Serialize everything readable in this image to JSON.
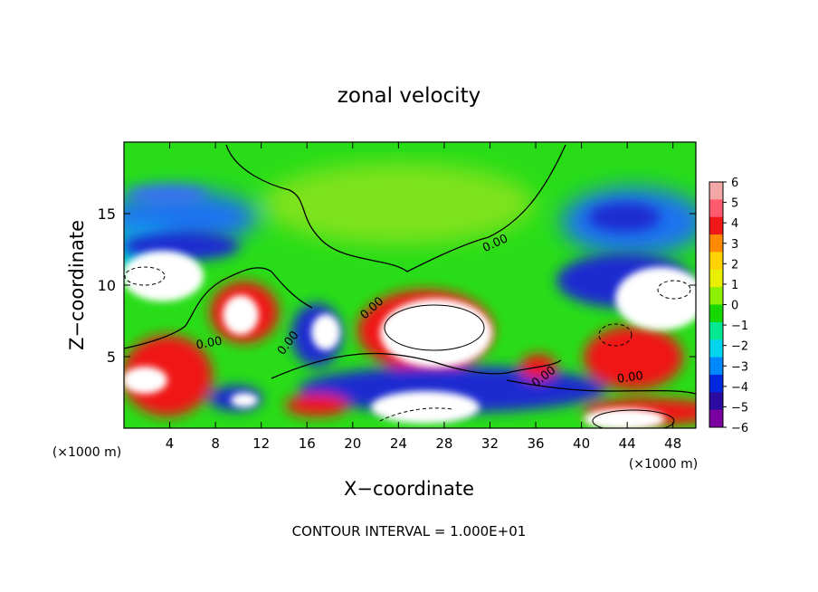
{
  "chart_data": {
    "type": "heatmap",
    "title": "zonal velocity",
    "xlabel": "X−coordinate",
    "ylabel": "Z−coordinate",
    "x_unit_left": "(×1000 m)",
    "x_unit_right": "(×1000 m)",
    "footer": "CONTOUR INTERVAL = 1.000E+01",
    "xlim": [
      0,
      50
    ],
    "ylim": [
      0,
      20
    ],
    "x_ticks": [
      4,
      8,
      12,
      16,
      20,
      24,
      28,
      32,
      36,
      40,
      44,
      48
    ],
    "y_ticks": [
      5,
      10,
      15
    ],
    "colorbar": {
      "min": -6,
      "max": 6,
      "ticks": [
        6,
        5,
        4,
        3,
        2,
        1,
        0,
        -1,
        -2,
        -3,
        -4,
        -5,
        -6
      ],
      "colors": [
        "#f4a7a7",
        "#ff5a6e",
        "#f01818",
        "#ff8a00",
        "#ffd200",
        "#e8ef00",
        "#8cf000",
        "#16d800",
        "#00e890",
        "#00d4ee",
        "#0088ff",
        "#0028e0",
        "#2a0aa0",
        "#7a00a0"
      ]
    },
    "contour_labels": [
      {
        "text": "0.00",
        "x": 7.5,
        "y": 5.7,
        "angle": -10
      },
      {
        "text": "0.00",
        "x": 14.6,
        "y": 5.8,
        "angle": -52
      },
      {
        "text": "0.00",
        "x": 21.9,
        "y": 8.2,
        "angle": -42
      },
      {
        "text": "0.00",
        "x": 32.6,
        "y": 12.7,
        "angle": -25
      },
      {
        "text": "0.00",
        "x": 36.9,
        "y": 3.4,
        "angle": -38
      },
      {
        "text": "0.00",
        "x": 44.3,
        "y": 3.3,
        "angle": -8
      }
    ]
  }
}
